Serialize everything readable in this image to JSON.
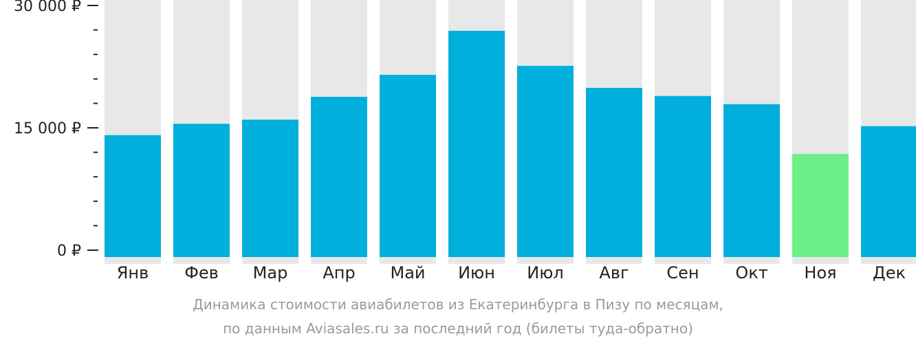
{
  "chart_data": {
    "type": "bar",
    "categories": [
      "Янв",
      "Фев",
      "Мар",
      "Апр",
      "Май",
      "Июн",
      "Июл",
      "Авг",
      "Сен",
      "Окт",
      "Ноя",
      "Дек"
    ],
    "values": [
      14100,
      15500,
      16000,
      18800,
      21500,
      26900,
      22600,
      19900,
      18900,
      17900,
      11800,
      15200
    ],
    "highlight_index": 10,
    "ylim": [
      0,
      30000
    ],
    "yticks": [
      {
        "value": 0,
        "label": "0 ₽"
      },
      {
        "value": 15000,
        "label": "15 000 ₽"
      },
      {
        "value": 30000,
        "label": "30 000 ₽"
      }
    ],
    "minor_tick_step": 3000,
    "colors": {
      "bar": "#00afdc",
      "highlight": "#6cef87",
      "background_bar": "#e8e8e8",
      "axis": "#222222"
    }
  },
  "caption": {
    "line1": "Динамика стоимости авиабилетов из Екатеринбурга в Пизу по месяцам,",
    "line2": "по данным Aviasales.ru за последний год (билеты туда-обратно)"
  }
}
